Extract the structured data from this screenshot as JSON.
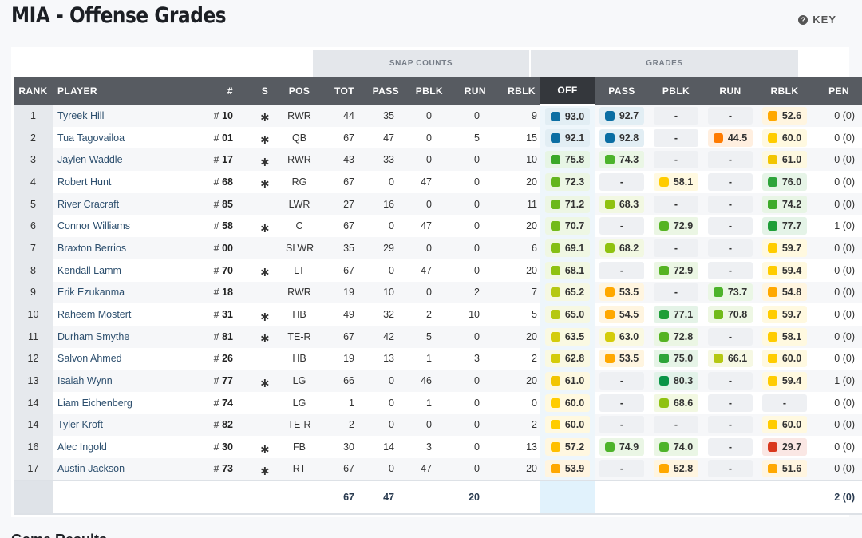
{
  "page": {
    "title": "MIA - Offense Grades",
    "key_label": "KEY",
    "key_icon": "question-circle-icon",
    "next_section": "Game Results"
  },
  "groups": {
    "snap_counts": "SNAP COUNTS",
    "grades": "GRADES"
  },
  "columns": {
    "rank": "RANK",
    "player": "PLAYER",
    "jersey": "#",
    "starter": "S",
    "pos": "POS",
    "tot": "TOT",
    "pass_snaps": "PASS",
    "pblk_snaps": "PBLK",
    "run_snaps": "RUN",
    "rblk_snaps": "RBLK",
    "off": "OFF",
    "pass_grade": "PASS",
    "pblk_grade": "PBLK",
    "run_grade": "RUN",
    "rblk_grade": "RBLK",
    "pen": "PEN"
  },
  "colors": {
    "elite": "#0b6ea3",
    "green_dark": "#1a9b3a",
    "green": "#4db32a",
    "green_light": "#7bbf1c",
    "yellow_green": "#b5c812",
    "yellow": "#ffcc00",
    "orange": "#ffa800",
    "dark_orange": "#ff7b00",
    "red": "#d9381e",
    "header_bg": "#575b61",
    "off_header_bg": "#34373c"
  },
  "rows": [
    {
      "rank": "1",
      "player": "Tyreek Hill",
      "jersey": "10",
      "starter": "*",
      "pos": "RWR",
      "tot": "44",
      "pass": "35",
      "pblk": "0",
      "run": "0",
      "rblk": "9",
      "off": {
        "v": "93.0",
        "c": "#0b6ea3"
      },
      "pass_g": {
        "v": "92.7",
        "c": "#0b6ea3"
      },
      "pblk_g": {
        "v": "-"
      },
      "run_g": {
        "v": "-"
      },
      "rblk_g": {
        "v": "52.6",
        "c": "#ffa800"
      },
      "pen": "0 (0)"
    },
    {
      "rank": "2",
      "player": "Tua Tagovailoa",
      "jersey": "01",
      "starter": "*",
      "pos": "QB",
      "tot": "67",
      "pass": "47",
      "pblk": "0",
      "run": "5",
      "rblk": "15",
      "off": {
        "v": "92.1",
        "c": "#0b6ea3"
      },
      "pass_g": {
        "v": "92.8",
        "c": "#0b6ea3"
      },
      "pblk_g": {
        "v": "-"
      },
      "run_g": {
        "v": "44.5",
        "c": "#ff7b00"
      },
      "rblk_g": {
        "v": "60.0",
        "c": "#ffcc00"
      },
      "pen": "0 (0)"
    },
    {
      "rank": "3",
      "player": "Jaylen Waddle",
      "jersey": "17",
      "starter": "*",
      "pos": "RWR",
      "tot": "43",
      "pass": "33",
      "pblk": "0",
      "run": "0",
      "rblk": "10",
      "off": {
        "v": "75.8",
        "c": "#3aa828"
      },
      "pass_g": {
        "v": "74.3",
        "c": "#4db32a"
      },
      "pblk_g": {
        "v": "-"
      },
      "run_g": {
        "v": "-"
      },
      "rblk_g": {
        "v": "61.0",
        "c": "#f2c500"
      },
      "pen": "0 (0)"
    },
    {
      "rank": "4",
      "player": "Robert Hunt",
      "jersey": "68",
      "starter": "*",
      "pos": "RG",
      "tot": "67",
      "pass": "0",
      "pblk": "47",
      "run": "0",
      "rblk": "20",
      "off": {
        "v": "72.3",
        "c": "#63b51e"
      },
      "pass_g": {
        "v": "-"
      },
      "pblk_g": {
        "v": "58.1",
        "c": "#ffcc00"
      },
      "run_g": {
        "v": "-"
      },
      "rblk_g": {
        "v": "76.0",
        "c": "#2ea43a"
      },
      "pen": "0 (0)"
    },
    {
      "rank": "5",
      "player": "River Cracraft",
      "jersey": "85",
      "starter": "",
      "pos": "LWR",
      "tot": "27",
      "pass": "16",
      "pblk": "0",
      "run": "0",
      "rblk": "11",
      "off": {
        "v": "71.2",
        "c": "#6bb81c"
      },
      "pass_g": {
        "v": "68.3",
        "c": "#8fc210"
      },
      "pblk_g": {
        "v": "-"
      },
      "run_g": {
        "v": "-"
      },
      "rblk_g": {
        "v": "74.2",
        "c": "#3eab2a"
      },
      "pen": "0 (0)"
    },
    {
      "rank": "6",
      "player": "Connor Williams",
      "jersey": "58",
      "starter": "*",
      "pos": "C",
      "tot": "67",
      "pass": "0",
      "pblk": "47",
      "run": "0",
      "rblk": "20",
      "off": {
        "v": "70.7",
        "c": "#72ba1a"
      },
      "pass_g": {
        "v": "-"
      },
      "pblk_g": {
        "v": "72.9",
        "c": "#55b322"
      },
      "run_g": {
        "v": "-"
      },
      "rblk_g": {
        "v": "77.7",
        "c": "#1f9e38"
      },
      "pen": "1 (0)"
    },
    {
      "rank": "7",
      "player": "Braxton Berrios",
      "jersey": "00",
      "starter": "",
      "pos": "SLWR",
      "tot": "35",
      "pass": "29",
      "pblk": "0",
      "run": "0",
      "rblk": "6",
      "off": {
        "v": "69.1",
        "c": "#84bf14"
      },
      "pass_g": {
        "v": "68.2",
        "c": "#8fc210"
      },
      "pblk_g": {
        "v": "-"
      },
      "run_g": {
        "v": "-"
      },
      "rblk_g": {
        "v": "59.7",
        "c": "#ffcc00"
      },
      "pen": "0 (0)"
    },
    {
      "rank": "8",
      "player": "Kendall Lamm",
      "jersey": "70",
      "starter": "*",
      "pos": "LT",
      "tot": "67",
      "pass": "0",
      "pblk": "47",
      "run": "0",
      "rblk": "20",
      "off": {
        "v": "68.1",
        "c": "#8fc210"
      },
      "pass_g": {
        "v": "-"
      },
      "pblk_g": {
        "v": "72.9",
        "c": "#55b322"
      },
      "run_g": {
        "v": "-"
      },
      "rblk_g": {
        "v": "59.4",
        "c": "#ffcc00"
      },
      "pen": "0 (0)"
    },
    {
      "rank": "9",
      "player": "Erik Ezukanma",
      "jersey": "18",
      "starter": "",
      "pos": "RWR",
      "tot": "19",
      "pass": "10",
      "pblk": "0",
      "run": "2",
      "rblk": "7",
      "off": {
        "v": "65.2",
        "c": "#b5c812"
      },
      "pass_g": {
        "v": "53.5",
        "c": "#ffa800"
      },
      "pblk_g": {
        "v": "-"
      },
      "run_g": {
        "v": "73.7",
        "c": "#4db32a"
      },
      "rblk_g": {
        "v": "54.8",
        "c": "#ffa800"
      },
      "pen": "0 (0)"
    },
    {
      "rank": "10",
      "player": "Raheem Mostert",
      "jersey": "31",
      "starter": "*",
      "pos": "HB",
      "tot": "49",
      "pass": "32",
      "pblk": "2",
      "run": "10",
      "rblk": "5",
      "off": {
        "v": "65.0",
        "c": "#b5c812"
      },
      "pass_g": {
        "v": "54.5",
        "c": "#ffa800"
      },
      "pblk_g": {
        "v": "77.1",
        "c": "#1f9e38"
      },
      "run_g": {
        "v": "70.8",
        "c": "#72ba1a"
      },
      "rblk_g": {
        "v": "59.7",
        "c": "#ffcc00"
      },
      "pen": "0 (0)"
    },
    {
      "rank": "11",
      "player": "Durham Smythe",
      "jersey": "81",
      "starter": "*",
      "pos": "TE-R",
      "tot": "67",
      "pass": "42",
      "pblk": "5",
      "run": "0",
      "rblk": "20",
      "off": {
        "v": "63.5",
        "c": "#d4cc0a"
      },
      "pass_g": {
        "v": "63.0",
        "c": "#d4cc0a"
      },
      "pblk_g": {
        "v": "72.8",
        "c": "#55b322"
      },
      "run_g": {
        "v": "-"
      },
      "rblk_g": {
        "v": "58.1",
        "c": "#ffcc00"
      },
      "pen": "0 (0)"
    },
    {
      "rank": "12",
      "player": "Salvon Ahmed",
      "jersey": "26",
      "starter": "",
      "pos": "HB",
      "tot": "19",
      "pass": "13",
      "pblk": "1",
      "run": "3",
      "rblk": "2",
      "off": {
        "v": "62.8",
        "c": "#d4cc0a"
      },
      "pass_g": {
        "v": "53.5",
        "c": "#ffa800"
      },
      "pblk_g": {
        "v": "75.0",
        "c": "#2ea43a"
      },
      "run_g": {
        "v": "66.1",
        "c": "#b5c812"
      },
      "rblk_g": {
        "v": "60.0",
        "c": "#ffcc00"
      },
      "pen": "0 (0)"
    },
    {
      "rank": "13",
      "player": "Isaiah Wynn",
      "jersey": "77",
      "starter": "*",
      "pos": "LG",
      "tot": "66",
      "pass": "0",
      "pblk": "46",
      "run": "0",
      "rblk": "20",
      "off": {
        "v": "61.0",
        "c": "#f2c500"
      },
      "pass_g": {
        "v": "-"
      },
      "pblk_g": {
        "v": "80.3",
        "c": "#0a9447"
      },
      "run_g": {
        "v": "-"
      },
      "rblk_g": {
        "v": "59.4",
        "c": "#ffcc00"
      },
      "pen": "1 (0)"
    },
    {
      "rank": "14",
      "player": "Liam Eichenberg",
      "jersey": "74",
      "starter": "",
      "pos": "LG",
      "tot": "1",
      "pass": "0",
      "pblk": "1",
      "run": "0",
      "rblk": "0",
      "off": {
        "v": "60.0",
        "c": "#ffcc00"
      },
      "pass_g": {
        "v": "-"
      },
      "pblk_g": {
        "v": "68.6",
        "c": "#8fc210"
      },
      "run_g": {
        "v": "-"
      },
      "rblk_g": {
        "v": "-"
      },
      "pen": "0 (0)"
    },
    {
      "rank": "14",
      "player": "Tyler Kroft",
      "jersey": "82",
      "starter": "",
      "pos": "TE-R",
      "tot": "2",
      "pass": "0",
      "pblk": "0",
      "run": "0",
      "rblk": "2",
      "off": {
        "v": "60.0",
        "c": "#ffcc00"
      },
      "pass_g": {
        "v": "-"
      },
      "pblk_g": {
        "v": "-"
      },
      "run_g": {
        "v": "-"
      },
      "rblk_g": {
        "v": "60.0",
        "c": "#ffcc00"
      },
      "pen": "0 (0)"
    },
    {
      "rank": "16",
      "player": "Alec Ingold",
      "jersey": "30",
      "starter": "*",
      "pos": "FB",
      "tot": "30",
      "pass": "14",
      "pblk": "3",
      "run": "0",
      "rblk": "13",
      "off": {
        "v": "57.2",
        "c": "#ffbf00"
      },
      "pass_g": {
        "v": "74.9",
        "c": "#4db32a"
      },
      "pblk_g": {
        "v": "74.0",
        "c": "#4db32a"
      },
      "run_g": {
        "v": "-"
      },
      "rblk_g": {
        "v": "29.7",
        "c": "#d9381e"
      },
      "pen": "0 (0)"
    },
    {
      "rank": "17",
      "player": "Austin Jackson",
      "jersey": "73",
      "starter": "*",
      "pos": "RT",
      "tot": "67",
      "pass": "0",
      "pblk": "47",
      "run": "0",
      "rblk": "20",
      "off": {
        "v": "53.9",
        "c": "#ffa800"
      },
      "pass_g": {
        "v": "-"
      },
      "pblk_g": {
        "v": "52.8",
        "c": "#ffa800"
      },
      "run_g": {
        "v": "-"
      },
      "rblk_g": {
        "v": "51.6",
        "c": "#ffa800"
      },
      "pen": "0 (0)"
    }
  ],
  "totals": {
    "tot": "67",
    "pass": "47",
    "pblk": "",
    "run": "20",
    "rblk": "",
    "pen": "2 (0)"
  }
}
